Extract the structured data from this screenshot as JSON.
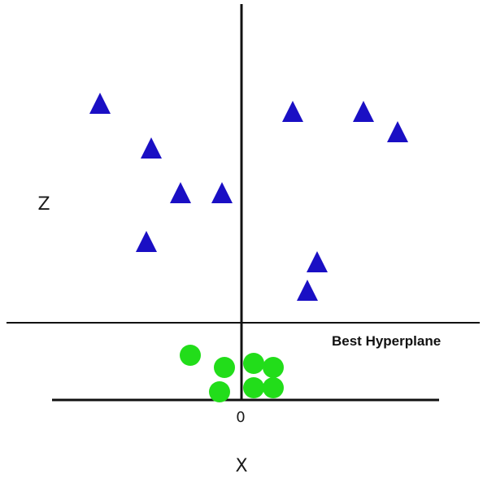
{
  "labels": {
    "z_axis": "Z",
    "x_axis": "X",
    "origin": "0",
    "hyperplane": "Best Hyperplane"
  },
  "colors": {
    "triangle": "#1a0fc4",
    "circle": "#22dd1a",
    "line": "#111111",
    "background": "#ffffff"
  },
  "chart_data": {
    "type": "scatter",
    "series": [
      {
        "marker": "triangle",
        "points": [
          {
            "x": -5.8,
            "y": 7.3
          },
          {
            "x": -3.7,
            "y": 6.2
          },
          {
            "x": -2.5,
            "y": 5.1
          },
          {
            "x": -0.8,
            "y": 5.1
          },
          {
            "x": -3.9,
            "y": 3.9
          },
          {
            "x": 2.1,
            "y": 7.1
          },
          {
            "x": 5.0,
            "y": 7.1
          },
          {
            "x": 6.4,
            "y": 6.6
          },
          {
            "x": 3.1,
            "y": 3.4
          },
          {
            "x": 2.7,
            "y": 2.7
          }
        ]
      },
      {
        "marker": "circle",
        "points": [
          {
            "x": -2.1,
            "y": 1.1
          },
          {
            "x": -0.7,
            "y": 0.8
          },
          {
            "x": 0.5,
            "y": 0.9
          },
          {
            "x": 1.3,
            "y": 0.8
          },
          {
            "x": -0.9,
            "y": 0.2
          },
          {
            "x": 0.5,
            "y": 0.3
          },
          {
            "x": 1.3,
            "y": 0.3
          }
        ]
      }
    ],
    "hyperplane_y": 2.2,
    "grid": false
  }
}
